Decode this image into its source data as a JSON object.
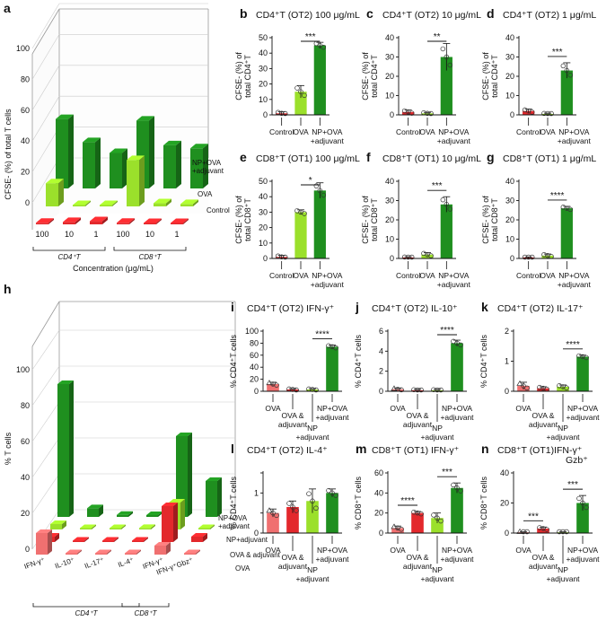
{
  "colors": {
    "control": "#e3282c",
    "ova": "#9be02b",
    "np_ova_adj": "#1f8f1f",
    "ova_adj": "#e3282c",
    "np_adj": "#9be02b",
    "lite_red": "#f07070",
    "axis": "#111111"
  },
  "panel_a": {
    "letter": "a",
    "ylabel": "CFSE- (%) of total T cells",
    "yticks": [
      "0",
      "20",
      "40",
      "60",
      "80",
      "100"
    ],
    "xlabel": "Concentration (μg/mL)",
    "concentrations": [
      "100",
      "10",
      "1",
      "100",
      "10",
      "1"
    ],
    "groups": [
      "CD4⁺T",
      "CD8⁺T"
    ],
    "series_labels": [
      "NP+OVA\n+adjuvant",
      "OVA",
      "Control"
    ]
  },
  "panel_h": {
    "letter": "h",
    "ylabel": "% T cells",
    "yticks": [
      "0",
      "20",
      "40",
      "60",
      "80",
      "100"
    ],
    "categories": [
      "IFN-γ⁺",
      "IL-10⁺",
      "IL-17⁺",
      "IL-4⁺",
      "IFN-γ⁺",
      "IFN-γ⁺Gbz⁺"
    ],
    "groups": [
      "CD4⁺T",
      "CD8⁺T"
    ],
    "series_labels": [
      "NP+OVA\n+adjuvant",
      "NP+adjuvant",
      "OVA & adjuvant",
      "OVA"
    ]
  },
  "bar_panels": [
    {
      "id": "b",
      "letter": "b",
      "title": "CD4⁺T (OT2) 100 μg/mL",
      "ylabel": "CFSE- (%) of\ntotal CD4⁺T",
      "ymax": 50,
      "yticks": [
        0,
        10,
        20,
        30,
        40,
        50
      ],
      "labels": [
        "Control",
        "OVA",
        "NP+OVA\n+adjuvant"
      ],
      "colors": [
        "control",
        "ova",
        "np_ova_adj"
      ],
      "values": [
        1,
        15,
        45
      ],
      "errors": [
        1,
        4,
        2
      ],
      "sig": [
        {
          "a": 1,
          "b": 2,
          "text": "***"
        }
      ]
    },
    {
      "id": "c",
      "letter": "c",
      "title": "CD4⁺T (OT2) 10 μg/mL",
      "ylabel": "CFSE- (%) of\ntotal CD4⁺T",
      "ymax": 40,
      "yticks": [
        0,
        10,
        20,
        30,
        40
      ],
      "labels": [
        "Control",
        "OVA",
        "NP+OVA\n+adjuvant"
      ],
      "colors": [
        "control",
        "ova",
        "np_ova_adj"
      ],
      "values": [
        1.5,
        0.8,
        30
      ],
      "errors": [
        1,
        0.5,
        7
      ],
      "sig": [
        {
          "a": 1,
          "b": 2,
          "text": "**"
        }
      ]
    },
    {
      "id": "d",
      "letter": "d",
      "title": "CD4⁺T (OT2) 1 μg/mL",
      "ylabel": "CFSE- (%) of\ntotal CD4⁺T",
      "ymax": 40,
      "yticks": [
        0,
        10,
        20,
        30,
        40
      ],
      "labels": [
        "Control",
        "OVA",
        "NP+OVA\n+adjuvant"
      ],
      "colors": [
        "control",
        "ova",
        "np_ova_adj"
      ],
      "values": [
        2,
        0.5,
        23
      ],
      "errors": [
        1,
        0.4,
        4
      ],
      "sig": [
        {
          "a": 1,
          "b": 2,
          "text": "***"
        }
      ]
    },
    {
      "id": "e",
      "letter": "e",
      "title": "CD8⁺T (OT1) 100 μg/mL",
      "ylabel": "CFSE- (%) of\ntotal CD8⁺T",
      "ymax": 50,
      "yticks": [
        0,
        10,
        20,
        30,
        40,
        50
      ],
      "labels": [
        "Control",
        "OVA",
        "NP+OVA\n+adjuvant"
      ],
      "colors": [
        "control",
        "ova",
        "np_ova_adj"
      ],
      "values": [
        1,
        30,
        44
      ],
      "errors": [
        1,
        1.5,
        5
      ],
      "sig": [
        {
          "a": 1,
          "b": 2,
          "text": "*"
        }
      ]
    },
    {
      "id": "f",
      "letter": "f",
      "title": "CD8⁺T (OT1) 10 μg/mL",
      "ylabel": "CFSE- (%) of\ntotal CD8⁺T",
      "ymax": 40,
      "yticks": [
        0,
        10,
        20,
        30,
        40
      ],
      "labels": [
        "Control",
        "OVA",
        "NP+OVA\n+adjuvant"
      ],
      "colors": [
        "control",
        "ova",
        "np_ova_adj"
      ],
      "values": [
        0.5,
        2,
        28
      ],
      "errors": [
        0.4,
        1,
        4
      ],
      "sig": [
        {
          "a": 1,
          "b": 2,
          "text": "***"
        }
      ]
    },
    {
      "id": "g",
      "letter": "g",
      "title": "CD8⁺T (OT1) 1 μg/mL",
      "ylabel": "CFSE- (%) of\ntotal CD8⁺T",
      "ymax": 40,
      "yticks": [
        0,
        10,
        20,
        30,
        40
      ],
      "labels": [
        "Control",
        "OVA",
        "NP+OVA\n+adjuvant"
      ],
      "colors": [
        "control",
        "ova",
        "np_ova_adj"
      ],
      "values": [
        0.5,
        1.5,
        26
      ],
      "errors": [
        0.3,
        0.8,
        1
      ],
      "sig": [
        {
          "a": 1,
          "b": 2,
          "text": "****"
        }
      ]
    },
    {
      "id": "i",
      "letter": "i",
      "title": "CD4⁺T (OT2) IFN-γ⁺",
      "ylabel": "% CD4⁺T cells",
      "ymax": 100,
      "yticks": [
        0,
        20,
        40,
        60,
        80,
        100
      ],
      "labels": [
        "OVA",
        "OVA &\nadjuvant",
        "NP\n+adjuvant",
        "NP+OVA\n+adjuvant"
      ],
      "colors": [
        "lite_red",
        "ova_adj",
        "np_adj",
        "np_ova_adj"
      ],
      "values": [
        12,
        3,
        3,
        74
      ],
      "errors": [
        3,
        1.5,
        1.5,
        3
      ],
      "sig": [
        {
          "a": 2,
          "b": 3,
          "text": "****"
        }
      ]
    },
    {
      "id": "j",
      "letter": "j",
      "title": "CD4⁺T (OT2) IL-10⁺",
      "ylabel": "% CD4⁺T cells",
      "ymax": 6,
      "yticks": [
        0,
        2,
        4,
        6
      ],
      "labels": [
        "OVA",
        "OVA &\nadjuvant",
        "NP\n+adjuvant",
        "NP+OVA\n+adjuvant"
      ],
      "colors": [
        "lite_red",
        "ova_adj",
        "np_adj",
        "np_ova_adj"
      ],
      "values": [
        0.2,
        0.1,
        0.1,
        4.8
      ],
      "errors": [
        0.1,
        0.1,
        0.1,
        0.3
      ],
      "sig": [
        {
          "a": 2,
          "b": 3,
          "text": "****"
        }
      ]
    },
    {
      "id": "k",
      "letter": "k",
      "title": "CD4⁺T (OT2) IL-17⁺",
      "ylabel": "% CD4⁺T cells",
      "ymax": 2,
      "yticks": [
        0,
        1,
        2
      ],
      "labels": [
        "OVA",
        "OVA &\nadjuvant",
        "NP\n+adjuvant",
        "NP+OVA\n+adjuvant"
      ],
      "colors": [
        "lite_red",
        "ova_adj",
        "np_adj",
        "np_ova_adj"
      ],
      "values": [
        0.18,
        0.1,
        0.15,
        1.15
      ],
      "errors": [
        0.12,
        0.05,
        0.06,
        0.05
      ],
      "sig": [
        {
          "a": 2,
          "b": 3,
          "text": "****"
        }
      ]
    },
    {
      "id": "l",
      "letter": "l",
      "title": "CD4⁺T (OT2) IL-4⁺",
      "ylabel": "% CD4⁺T cells",
      "ymax": 1.5,
      "yticks": [
        0,
        0.5,
        1,
        1.5
      ],
      "yticklabels": [
        "0",
        "",
        "1",
        ""
      ],
      "labels": [
        "OVA",
        "OVA &\nadjuvant",
        "NP\n+adjuvant",
        "NP+OVA\n+adjuvant"
      ],
      "colors": [
        "lite_red",
        "ova_adj",
        "np_adj",
        "np_ova_adj"
      ],
      "values": [
        0.5,
        0.65,
        0.8,
        1.0
      ],
      "errors": [
        0.1,
        0.15,
        0.3,
        0.1
      ],
      "sig": []
    },
    {
      "id": "m",
      "letter": "m",
      "title": "CD8⁺T (OT1) IFN-γ⁺",
      "ylabel": "% CD8⁺T cells",
      "ymax": 60,
      "yticks": [
        0,
        20,
        40,
        60
      ],
      "labels": [
        "OVA",
        "OVA &\nadjuvant",
        "NP\n+adjuvant",
        "NP+OVA\n+adjuvant"
      ],
      "colors": [
        "lite_red",
        "ova_adj",
        "np_adj",
        "np_ova_adj"
      ],
      "values": [
        5,
        20,
        15,
        45
      ],
      "errors": [
        2,
        1.5,
        5,
        5
      ],
      "sig": [
        {
          "a": 0,
          "b": 1,
          "text": "****"
        },
        {
          "a": 2,
          "b": 3,
          "text": "***"
        }
      ]
    },
    {
      "id": "n",
      "letter": "n",
      "title": "CD8⁺T (OT1)IFN-γ⁺\nGzb⁺",
      "ylabel": "% CD8⁺T cells",
      "ymax": 40,
      "yticks": [
        0,
        20,
        40
      ],
      "labels": [
        "OVA",
        "OVA &\nadjuvant",
        "NP\n+adjuvant",
        "NP+OVA\n+adjuvant"
      ],
      "colors": [
        "lite_red",
        "ova_adj",
        "np_adj",
        "np_ova_adj"
      ],
      "values": [
        0.5,
        3,
        0.5,
        20
      ],
      "errors": [
        0.3,
        1,
        0.3,
        5
      ],
      "sig": [
        {
          "a": 0,
          "b": 1,
          "text": "***"
        },
        {
          "a": 2,
          "b": 3,
          "text": "***"
        }
      ]
    }
  ],
  "chart_data": [
    {
      "type": "bar",
      "id": "a",
      "ylabel": "CFSE- (%) of total T cells",
      "xlabel": "Concentration (μg/mL)",
      "categories": [
        "CD4⁺T 100",
        "CD4⁺T 10",
        "CD4⁺T 1",
        "CD8⁺T 100",
        "CD8⁺T 10",
        "CD8⁺T 1"
      ],
      "series": [
        {
          "name": "Control",
          "values": [
            1,
            1.5,
            2,
            1,
            0.5,
            0.5
          ]
        },
        {
          "name": "OVA",
          "values": [
            15,
            0.8,
            0.5,
            30,
            2,
            1.5
          ]
        },
        {
          "name": "NP+OVA\n+adjuvant",
          "values": [
            45,
            30,
            23,
            44,
            28,
            26
          ]
        }
      ],
      "ylim": [
        0,
        100
      ]
    },
    {
      "type": "bar",
      "id": "h",
      "ylabel": "% T cells",
      "categories": [
        "CD4⁺T IFN-γ⁺",
        "CD4⁺T IL-10⁺",
        "CD4⁺T IL-17⁺",
        "CD4⁺T IL-4⁺",
        "CD8⁺T IFN-γ⁺",
        "CD8⁺T IFN-γ⁺Gbz⁺"
      ],
      "series": [
        {
          "name": "OVA",
          "values": [
            12,
            0.2,
            0.18,
            0.5,
            5,
            0.5
          ]
        },
        {
          "name": "OVA & adjuvant",
          "values": [
            3,
            0.1,
            0.1,
            0.65,
            20,
            3
          ]
        },
        {
          "name": "NP+adjuvant",
          "values": [
            3,
            0.1,
            0.15,
            0.8,
            15,
            0.5
          ]
        },
        {
          "name": "NP+OVA\n+adjuvant",
          "values": [
            74,
            4.8,
            1.15,
            1.0,
            45,
            20
          ]
        }
      ],
      "ylim": [
        0,
        100
      ]
    }
  ]
}
